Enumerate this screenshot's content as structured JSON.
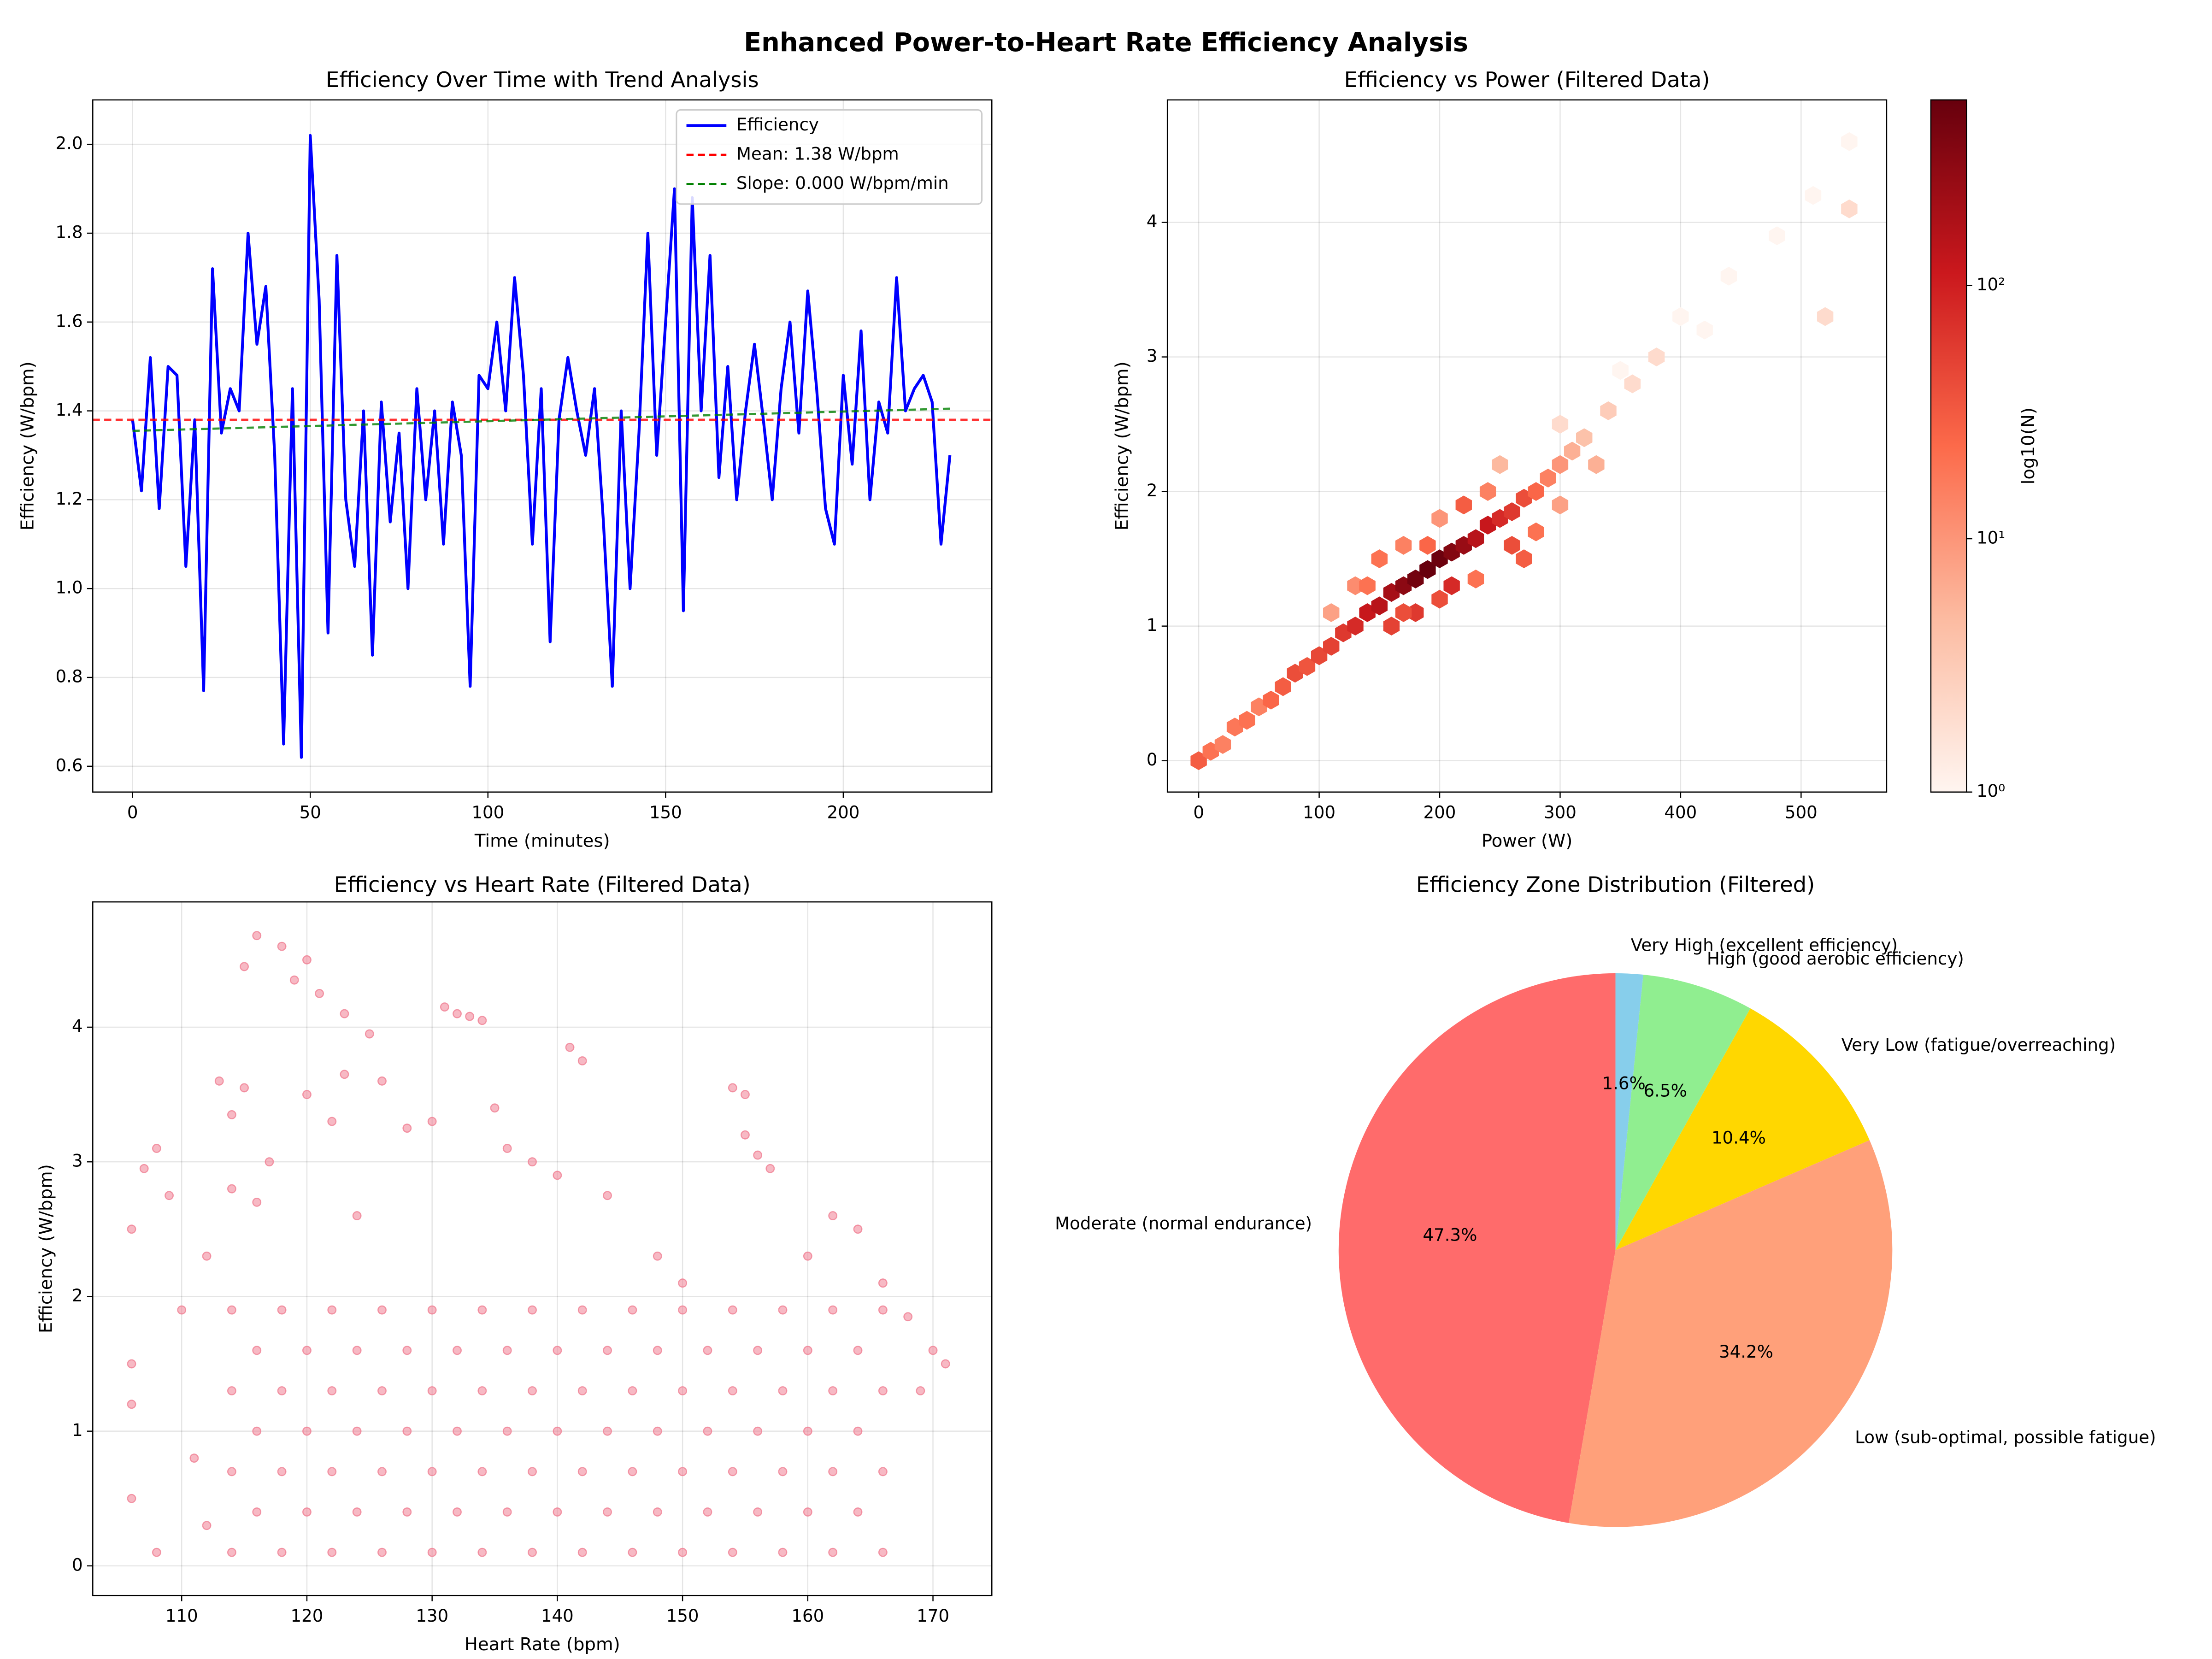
{
  "title": "Enhanced Power-to-Heart Rate Efficiency Analysis",
  "chart_data": [
    {
      "type": "line",
      "title": "Efficiency Over Time with Trend Analysis",
      "x_label": "Time (minutes)",
      "y_label": "Efficiency (W/bpm)",
      "x": [
        0,
        2.5,
        5,
        7.5,
        10,
        12.5,
        15,
        17.5,
        20,
        22.5,
        25,
        27.5,
        30,
        32.5,
        35,
        37.5,
        40,
        42.5,
        45,
        47.5,
        50,
        52.5,
        55,
        57.5,
        60,
        62.5,
        65,
        67.5,
        70,
        72.5,
        75,
        77.5,
        80,
        82.5,
        85,
        87.5,
        90,
        92.5,
        95,
        97.5,
        100,
        102.5,
        105,
        107.5,
        110,
        112.5,
        115,
        117.5,
        120,
        122.5,
        125,
        127.5,
        130,
        132.5,
        135,
        137.5,
        140,
        142.5,
        145,
        147.5,
        150,
        152.5,
        155,
        157.5,
        160,
        162.5,
        165,
        167.5,
        170,
        172.5,
        175,
        177.5,
        180,
        182.5,
        185,
        187.5,
        190,
        192.5,
        195,
        197.5,
        200,
        202.5,
        205,
        207.5,
        210,
        212.5,
        215,
        217.5,
        220,
        222.5,
        225,
        227.5,
        230
      ],
      "series": [
        {
          "name": "Efficiency",
          "color": "#0000ff",
          "values": [
            1.38,
            1.22,
            1.52,
            1.18,
            1.5,
            1.48,
            1.05,
            1.38,
            0.77,
            1.72,
            1.35,
            1.45,
            1.4,
            1.8,
            1.55,
            1.68,
            1.3,
            0.65,
            1.45,
            0.62,
            2.02,
            1.65,
            0.9,
            1.75,
            1.2,
            1.05,
            1.4,
            0.85,
            1.42,
            1.15,
            1.35,
            1.0,
            1.45,
            1.2,
            1.4,
            1.1,
            1.42,
            1.3,
            0.78,
            1.48,
            1.45,
            1.6,
            1.4,
            1.7,
            1.48,
            1.1,
            1.45,
            0.88,
            1.38,
            1.52,
            1.4,
            1.3,
            1.45,
            1.15,
            0.78,
            1.4,
            1.0,
            1.35,
            1.8,
            1.3,
            1.6,
            1.9,
            0.95,
            1.88,
            1.4,
            1.75,
            1.25,
            1.5,
            1.2,
            1.4,
            1.55,
            1.38,
            1.2,
            1.45,
            1.6,
            1.35,
            1.67,
            1.45,
            1.18,
            1.1,
            1.48,
            1.28,
            1.58,
            1.2,
            1.42,
            1.35,
            1.7,
            1.4,
            1.45,
            1.48,
            1.42,
            1.1,
            1.3
          ]
        }
      ],
      "mean_line": {
        "name": "Mean: 1.38 W/bpm",
        "value": 1.38,
        "color": "#ff0000"
      },
      "trend_line": {
        "name": "Slope: 0.000 W/bpm/min",
        "x": [
          0,
          230
        ],
        "values": [
          1.355,
          1.405
        ],
        "color": "#008000"
      },
      "xlim": [
        -11.2,
        241.8
      ],
      "ylim": [
        0.542,
        2.1
      ],
      "xticks": [
        0,
        50,
        100,
        150,
        200
      ],
      "yticks": [
        0.6,
        0.8,
        {
          "value": 1,
          "label": "1.0"
        },
        1.2,
        1.4,
        1.6,
        1.8,
        {
          "value": 2,
          "label": "2.0"
        }
      ],
      "grid": true,
      "legend": "upper right"
    },
    {
      "type": "hexbin",
      "title": "Efficiency vs Power (Filtered Data)",
      "x_label": "Power (W)",
      "y_label": "Efficiency (W/bpm)",
      "x": [
        0,
        10,
        20,
        30,
        40,
        50,
        60,
        70,
        80,
        90,
        100,
        110,
        120,
        130,
        140,
        150,
        160,
        170,
        180,
        190,
        200,
        210,
        220,
        230,
        240,
        250,
        260,
        270,
        280,
        290,
        300,
        310,
        320,
        340,
        360,
        380,
        400,
        420,
        440,
        480,
        510,
        520,
        540,
        540,
        150,
        170,
        200,
        180,
        160,
        220,
        240,
        260,
        280,
        300,
        250,
        300,
        330,
        350,
        200,
        130,
        110,
        230,
        270,
        190,
        210,
        140,
        170
      ],
      "y": [
        0,
        0.07,
        0.12,
        0.25,
        0.3,
        0.4,
        0.45,
        0.55,
        0.65,
        0.7,
        0.78,
        0.85,
        0.95,
        1.0,
        1.1,
        1.15,
        1.25,
        1.3,
        1.35,
        1.42,
        1.5,
        1.55,
        1.6,
        1.65,
        1.75,
        1.8,
        1.85,
        1.95,
        2.0,
        2.1,
        2.2,
        2.3,
        2.4,
        2.6,
        2.8,
        3.0,
        3.3,
        3.2,
        3.6,
        3.9,
        4.2,
        3.3,
        4.1,
        4.6,
        1.5,
        1.6,
        1.2,
        1.1,
        1.0,
        1.9,
        2.0,
        1.6,
        1.7,
        1.9,
        2.2,
        2.5,
        2.2,
        2.9,
        1.8,
        1.3,
        1.1,
        1.35,
        1.5,
        1.6,
        1.3,
        1.3,
        1.1
      ],
      "counts": [
        30,
        20,
        15,
        18,
        20,
        15,
        25,
        30,
        40,
        35,
        45,
        50,
        60,
        80,
        120,
        150,
        200,
        300,
        450,
        540,
        500,
        350,
        250,
        150,
        120,
        80,
        60,
        40,
        25,
        15,
        10,
        6,
        4,
        3,
        2,
        2,
        1,
        1,
        1,
        1,
        1,
        2,
        2,
        1,
        20,
        15,
        40,
        60,
        50,
        30,
        15,
        40,
        20,
        8,
        5,
        2,
        6,
        1,
        10,
        12,
        8,
        20,
        30,
        25,
        80,
        20,
        40
      ],
      "xlim": [
        -26,
        571
      ],
      "ylim": [
        -0.233,
        4.91
      ],
      "xticks": [
        0,
        100,
        200,
        300,
        400,
        500
      ],
      "yticks": [
        0,
        1,
        2,
        3,
        4
      ],
      "grid": true,
      "colormap": "Reds",
      "color_scale": "log",
      "clim": [
        1,
        540
      ],
      "cticks": [
        {
          "value": 1,
          "label": "10⁰"
        },
        {
          "value": 10,
          "label": "10¹"
        },
        {
          "value": 100,
          "label": "10²"
        }
      ],
      "colorbar_label": "log10(N)"
    },
    {
      "type": "scatter",
      "title": "Efficiency vs Heart Rate (Filtered Data)",
      "x_label": "Heart Rate (bpm)",
      "y_label": "Efficiency (W/bpm)",
      "color": "#f07f93",
      "x": [
        106,
        106,
        106,
        106,
        107,
        108,
        109,
        108,
        110,
        111,
        112,
        112,
        113,
        114,
        114,
        115,
        115,
        116,
        116,
        117,
        118,
        119,
        120,
        120,
        121,
        122,
        123,
        123,
        124,
        125,
        126,
        128,
        130,
        131,
        132,
        133,
        134,
        135,
        136,
        138,
        140,
        141,
        142,
        144,
        148,
        150,
        154,
        155,
        155,
        156,
        157,
        160,
        162,
        164,
        166,
        168,
        170,
        171,
        169,
        114,
        114,
        114,
        114,
        118,
        118,
        118,
        118,
        122,
        122,
        122,
        122,
        126,
        126,
        126,
        126,
        130,
        130,
        130,
        130,
        134,
        134,
        134,
        134,
        138,
        138,
        138,
        138,
        142,
        142,
        142,
        142,
        146,
        146,
        146,
        146,
        150,
        150,
        150,
        150,
        154,
        154,
        154,
        154,
        158,
        158,
        158,
        158,
        162,
        162,
        162,
        162,
        166,
        166,
        166,
        166,
        116,
        116,
        116,
        120,
        120,
        120,
        124,
        124,
        124,
        128,
        128,
        128,
        132,
        132,
        132,
        136,
        136,
        136,
        140,
        140,
        140,
        144,
        144,
        144,
        148,
        148,
        148,
        152,
        152,
        152,
        156,
        156,
        156,
        160,
        160,
        160,
        164,
        164,
        164
      ],
      "y": [
        1.5,
        2.5,
        0.5,
        1.2,
        2.95,
        3.1,
        2.75,
        0.1,
        1.9,
        0.8,
        2.3,
        0.3,
        3.6,
        3.35,
        2.8,
        4.45,
        3.55,
        4.68,
        2.7,
        3.0,
        4.6,
        4.35,
        4.5,
        3.5,
        4.25,
        3.3,
        4.1,
        3.65,
        2.6,
        3.95,
        3.6,
        3.25,
        3.3,
        4.15,
        4.1,
        4.08,
        4.05,
        3.4,
        3.1,
        3.0,
        2.9,
        3.85,
        3.75,
        2.75,
        2.3,
        2.1,
        3.55,
        3.5,
        3.2,
        3.05,
        2.95,
        2.3,
        2.6,
        2.5,
        2.1,
        1.85,
        1.6,
        1.5,
        1.3,
        0.1,
        0.7,
        1.3,
        1.9,
        0.1,
        0.7,
        1.3,
        1.9,
        0.1,
        0.7,
        1.3,
        1.9,
        0.1,
        0.7,
        1.3,
        1.9,
        0.1,
        0.7,
        1.3,
        1.9,
        0.1,
        0.7,
        1.3,
        1.9,
        0.1,
        0.7,
        1.3,
        1.9,
        0.1,
        0.7,
        1.3,
        1.9,
        0.1,
        0.7,
        1.3,
        1.9,
        0.1,
        0.7,
        1.3,
        1.9,
        0.1,
        0.7,
        1.3,
        1.9,
        0.1,
        0.7,
        1.3,
        1.9,
        0.1,
        0.7,
        1.3,
        1.9,
        0.1,
        0.7,
        1.3,
        1.9,
        0.4,
        1.0,
        1.6,
        0.4,
        1.0,
        1.6,
        0.4,
        1.0,
        1.6,
        0.4,
        1.0,
        1.6,
        0.4,
        1.0,
        1.6,
        0.4,
        1.0,
        1.6,
        0.4,
        1.0,
        1.6,
        0.4,
        1.0,
        1.6,
        0.4,
        1.0,
        1.6,
        0.4,
        1.0,
        1.6,
        0.4,
        1.0,
        1.6,
        0.4,
        1.0,
        1.6,
        0.4,
        1.0,
        1.6
      ],
      "xlim": [
        102.9,
        174.7
      ],
      "ylim": [
        -0.22,
        4.93
      ],
      "xticks": [
        110,
        120,
        130,
        140,
        150,
        160,
        170
      ],
      "yticks": [
        0,
        1,
        2,
        3,
        4
      ],
      "grid": true
    },
    {
      "type": "pie",
      "title": "Efficiency Zone Distribution (Filtered)",
      "labels": [
        "Moderate (normal endurance)",
        "Low (sub-optimal, possible fatigue)",
        "Very Low (fatigue/overreaching)",
        "High (good aerobic efficiency)",
        "Very High (excellent efficiency)"
      ],
      "values": [
        47.3,
        34.2,
        10.4,
        6.5,
        1.6
      ],
      "value_labels": [
        "47.3%",
        "34.2%",
        "10.4%",
        "6.5%",
        "1.6%"
      ],
      "colors": [
        "#ff6b6b",
        "#ffa07a",
        "#ffd700",
        "#90ee90",
        "#87ceeb"
      ],
      "start_angle": 90
    }
  ]
}
